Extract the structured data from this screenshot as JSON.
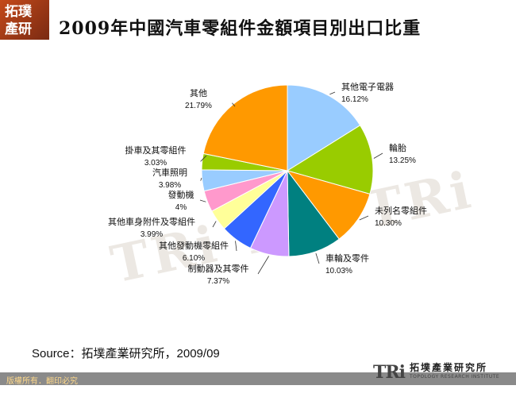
{
  "header": {
    "logo_text": "拓璞 產研",
    "title": "2009年中國汽車零組件金額項目別出口比重"
  },
  "watermark": "TRi TRi TRi",
  "source": "Source：拓墣產業研究所，2009/09",
  "footer": {
    "copyright": "版權所有．翻印必究",
    "logo_mark": "TRi",
    "logo_cn": "拓墣產業研究所",
    "logo_en": "TOPOLOGY RESEARCH INSTITUTE"
  },
  "chart_data": {
    "type": "pie",
    "title": "2009年中國汽車零組件金額項目別出口比重",
    "slices": [
      {
        "label": "其他電子電器",
        "value": 16.12,
        "display": "16.12%",
        "color": "#99ccff"
      },
      {
        "label": "輪胎",
        "value": 13.25,
        "display": "13.25%",
        "color": "#99cc00"
      },
      {
        "label": "未列名零組件",
        "value": 10.3,
        "display": "10.30%",
        "color": "#ff9900"
      },
      {
        "label": "車輪及零件",
        "value": 10.03,
        "display": "10.03%",
        "color": "#008080"
      },
      {
        "label": "制動器及其零件",
        "value": 7.37,
        "display": "7.37%",
        "color": "#cc99ff"
      },
      {
        "label": "其他發動機零組件",
        "value": 6.1,
        "display": "6.10%",
        "color": "#3366ff"
      },
      {
        "label": "其他車身附件及零組件",
        "value": 3.99,
        "display": "3.99%",
        "color": "#ffff99"
      },
      {
        "label": "發動機",
        "value": 4.0,
        "display": "4%",
        "color": "#ff99cc"
      },
      {
        "label": "汽車照明",
        "value": 3.98,
        "display": "3.98%",
        "color": "#99ccff"
      },
      {
        "label": "掛車及其零組件",
        "value": 3.03,
        "display": "3.03%",
        "color": "#99cc00"
      },
      {
        "label": "其他",
        "value": 21.79,
        "display": "21.79%",
        "color": "#ff9900"
      }
    ]
  }
}
